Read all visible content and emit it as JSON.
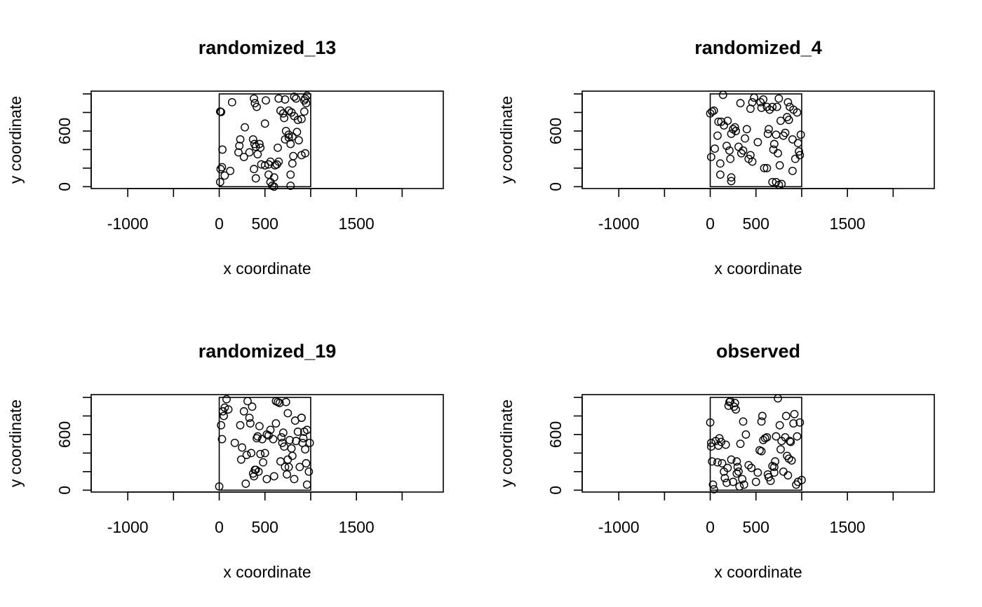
{
  "chart_data": [
    {
      "type": "scatter",
      "title": "randomized_13",
      "xlabel": "x coordinate",
      "ylabel": "y coordinate",
      "xlim": [
        -1400,
        2450
      ],
      "ylim": [
        -20,
        1030
      ],
      "x_ticks": [
        -1000,
        -500,
        0,
        500,
        1000,
        1500,
        2000
      ],
      "x_tick_labels": [
        "-1000",
        "",
        "0",
        "500",
        "",
        "1500",
        ""
      ],
      "y_ticks": [
        0,
        200,
        400,
        600,
        800,
        1000
      ],
      "y_tick_labels": [
        "0",
        "",
        "",
        "600",
        "",
        ""
      ],
      "window": {
        "xmin": 0,
        "xmax": 1000,
        "ymin": 0,
        "ymax": 1000
      },
      "points": [
        [
          10,
          810
        ],
        [
          20,
          805
        ],
        [
          140,
          910
        ],
        [
          35,
          400
        ],
        [
          30,
          210
        ],
        [
          15,
          190
        ],
        [
          10,
          50
        ],
        [
          60,
          120
        ],
        [
          120,
          170
        ],
        [
          230,
          510
        ],
        [
          220,
          440
        ],
        [
          210,
          370
        ],
        [
          270,
          320
        ],
        [
          280,
          640
        ],
        [
          330,
          370
        ],
        [
          370,
          510
        ],
        [
          380,
          950
        ],
        [
          390,
          900
        ],
        [
          410,
          860
        ],
        [
          385,
          460
        ],
        [
          400,
          430
        ],
        [
          420,
          350
        ],
        [
          440,
          460
        ],
        [
          380,
          190
        ],
        [
          400,
          90
        ],
        [
          460,
          240
        ],
        [
          500,
          230
        ],
        [
          540,
          240
        ],
        [
          510,
          930
        ],
        [
          560,
          50
        ],
        [
          580,
          10
        ],
        [
          600,
          100
        ],
        [
          610,
          230
        ],
        [
          630,
          240
        ],
        [
          640,
          420
        ],
        [
          650,
          950
        ],
        [
          670,
          820
        ],
        [
          700,
          790
        ],
        [
          710,
          740
        ],
        [
          720,
          940
        ],
        [
          730,
          600
        ],
        [
          760,
          820
        ],
        [
          790,
          800
        ],
        [
          760,
          560
        ],
        [
          780,
          460
        ],
        [
          800,
          540
        ],
        [
          820,
          970
        ],
        [
          820,
          760
        ],
        [
          840,
          950
        ],
        [
          810,
          330
        ],
        [
          800,
          250
        ],
        [
          780,
          130
        ],
        [
          780,
          10
        ],
        [
          850,
          590
        ],
        [
          860,
          720
        ],
        [
          870,
          500
        ],
        [
          900,
          730
        ],
        [
          900,
          340
        ],
        [
          930,
          930
        ],
        [
          940,
          950
        ],
        [
          950,
          900
        ],
        [
          940,
          360
        ],
        [
          930,
          810
        ],
        [
          960,
          980
        ],
        [
          540,
          130
        ],
        [
          600,
          0
        ],
        [
          450,
          420
        ],
        [
          560,
          270
        ],
        [
          650,
          270
        ],
        [
          760,
          530
        ],
        [
          500,
          680
        ],
        [
          720,
          510
        ]
      ]
    },
    {
      "type": "scatter",
      "title": "randomized_4",
      "xlabel": "x coordinate",
      "ylabel": "y coordinate",
      "xlim": [
        -1400,
        2450
      ],
      "ylim": [
        -20,
        1030
      ],
      "x_ticks": [
        -1000,
        -500,
        0,
        500,
        1000,
        1500,
        2000
      ],
      "x_tick_labels": [
        "-1000",
        "",
        "0",
        "500",
        "",
        "1500",
        ""
      ],
      "y_ticks": [
        0,
        200,
        400,
        600,
        800,
        1000
      ],
      "y_tick_labels": [
        "0",
        "",
        "",
        "600",
        "",
        ""
      ],
      "window": {
        "xmin": 0,
        "xmax": 1000,
        "ymin": 0,
        "ymax": 1000
      },
      "points": [
        [
          0,
          790
        ],
        [
          20,
          810
        ],
        [
          40,
          820
        ],
        [
          10,
          320
        ],
        [
          50,
          410
        ],
        [
          80,
          550
        ],
        [
          90,
          700
        ],
        [
          120,
          700
        ],
        [
          140,
          990
        ],
        [
          110,
          130
        ],
        [
          150,
          660
        ],
        [
          190,
          710
        ],
        [
          180,
          440
        ],
        [
          230,
          570
        ],
        [
          210,
          390
        ],
        [
          220,
          300
        ],
        [
          230,
          100
        ],
        [
          230,
          60
        ],
        [
          250,
          620
        ],
        [
          270,
          640
        ],
        [
          280,
          600
        ],
        [
          310,
          430
        ],
        [
          330,
          900
        ],
        [
          340,
          360
        ],
        [
          360,
          390
        ],
        [
          380,
          520
        ],
        [
          400,
          620
        ],
        [
          420,
          300
        ],
        [
          440,
          340
        ],
        [
          460,
          270
        ],
        [
          460,
          910
        ],
        [
          480,
          960
        ],
        [
          520,
          480
        ],
        [
          550,
          910
        ],
        [
          560,
          850
        ],
        [
          580,
          940
        ],
        [
          590,
          200
        ],
        [
          620,
          200
        ],
        [
          620,
          860
        ],
        [
          630,
          570
        ],
        [
          640,
          620
        ],
        [
          650,
          830
        ],
        [
          680,
          860
        ],
        [
          690,
          400
        ],
        [
          700,
          460
        ],
        [
          720,
          560
        ],
        [
          730,
          860
        ],
        [
          740,
          360
        ],
        [
          750,
          950
        ],
        [
          760,
          230
        ],
        [
          770,
          710
        ],
        [
          800,
          550
        ],
        [
          820,
          580
        ],
        [
          840,
          750
        ],
        [
          860,
          720
        ],
        [
          870,
          860
        ],
        [
          900,
          510
        ],
        [
          900,
          170
        ],
        [
          910,
          830
        ],
        [
          930,
          300
        ],
        [
          950,
          800
        ],
        [
          960,
          470
        ],
        [
          970,
          380
        ],
        [
          980,
          340
        ],
        [
          990,
          560
        ],
        [
          680,
          50
        ],
        [
          720,
          50
        ],
        [
          750,
          20
        ],
        [
          780,
          30
        ],
        [
          850,
          910
        ],
        [
          110,
          250
        ],
        [
          440,
          840
        ]
      ]
    },
    {
      "type": "scatter",
      "title": "randomized_19",
      "xlabel": "x coordinate",
      "ylabel": "y coordinate",
      "xlim": [
        -1400,
        2450
      ],
      "ylim": [
        -20,
        1030
      ],
      "x_ticks": [
        -1000,
        -500,
        0,
        500,
        1000,
        1500,
        2000
      ],
      "x_tick_labels": [
        "-1000",
        "",
        "0",
        "500",
        "",
        "1500",
        ""
      ],
      "y_ticks": [
        0,
        200,
        400,
        600,
        800,
        1000
      ],
      "y_tick_labels": [
        "0",
        "",
        "",
        "600",
        "",
        ""
      ],
      "window": {
        "xmin": 0,
        "xmax": 1000,
        "ymin": 0,
        "ymax": 1000
      },
      "points": [
        [
          0,
          40
        ],
        [
          20,
          700
        ],
        [
          30,
          550
        ],
        [
          40,
          850
        ],
        [
          50,
          800
        ],
        [
          60,
          890
        ],
        [
          80,
          980
        ],
        [
          100,
          870
        ],
        [
          170,
          510
        ],
        [
          230,
          700
        ],
        [
          250,
          460
        ],
        [
          240,
          330
        ],
        [
          270,
          850
        ],
        [
          290,
          70
        ],
        [
          300,
          380
        ],
        [
          310,
          960
        ],
        [
          330,
          780
        ],
        [
          340,
          720
        ],
        [
          350,
          400
        ],
        [
          360,
          900
        ],
        [
          370,
          180
        ],
        [
          380,
          150
        ],
        [
          390,
          220
        ],
        [
          410,
          560
        ],
        [
          420,
          580
        ],
        [
          430,
          200
        ],
        [
          440,
          690
        ],
        [
          470,
          550
        ],
        [
          480,
          300
        ],
        [
          500,
          400
        ],
        [
          520,
          120
        ],
        [
          540,
          590
        ],
        [
          560,
          650
        ],
        [
          590,
          550
        ],
        [
          600,
          150
        ],
        [
          620,
          960
        ],
        [
          640,
          950
        ],
        [
          660,
          940
        ],
        [
          670,
          310
        ],
        [
          690,
          510
        ],
        [
          700,
          620
        ],
        [
          710,
          470
        ],
        [
          720,
          250
        ],
        [
          730,
          950
        ],
        [
          740,
          170
        ],
        [
          750,
          830
        ],
        [
          760,
          250
        ],
        [
          770,
          540
        ],
        [
          790,
          450
        ],
        [
          800,
          370
        ],
        [
          820,
          120
        ],
        [
          830,
          750
        ],
        [
          840,
          530
        ],
        [
          860,
          630
        ],
        [
          880,
          250
        ],
        [
          900,
          780
        ],
        [
          910,
          510
        ],
        [
          920,
          560
        ],
        [
          930,
          630
        ],
        [
          940,
          440
        ],
        [
          950,
          290
        ],
        [
          960,
          650
        ],
        [
          960,
          60
        ],
        [
          980,
          200
        ],
        [
          990,
          510
        ],
        [
          400,
          220
        ],
        [
          450,
          390
        ],
        [
          520,
          600
        ],
        [
          620,
          720
        ],
        [
          680,
          570
        ],
        [
          900,
          780
        ],
        [
          750,
          330
        ]
      ]
    },
    {
      "type": "scatter",
      "title": "observed",
      "xlabel": "x coordinate",
      "ylabel": "y coordinate",
      "xlim": [
        -1400,
        2450
      ],
      "ylim": [
        -20,
        1030
      ],
      "x_ticks": [
        -1000,
        -500,
        0,
        500,
        1000,
        1500,
        2000
      ],
      "x_tick_labels": [
        "-1000",
        "",
        "0",
        "500",
        "",
        "1500",
        ""
      ],
      "y_ticks": [
        0,
        200,
        400,
        600,
        800,
        1000
      ],
      "y_tick_labels": [
        "0",
        "",
        "",
        "600",
        "",
        ""
      ],
      "window": {
        "xmin": 0,
        "xmax": 1000,
        "ymin": 0,
        "ymax": 1000
      },
      "points": [
        [
          0,
          730
        ],
        [
          10,
          470
        ],
        [
          10,
          510
        ],
        [
          20,
          310
        ],
        [
          30,
          60
        ],
        [
          40,
          10
        ],
        [
          60,
          530
        ],
        [
          80,
          300
        ],
        [
          90,
          480
        ],
        [
          100,
          560
        ],
        [
          120,
          520
        ],
        [
          130,
          290
        ],
        [
          150,
          200
        ],
        [
          160,
          130
        ],
        [
          170,
          490
        ],
        [
          180,
          80
        ],
        [
          190,
          240
        ],
        [
          200,
          910
        ],
        [
          210,
          950
        ],
        [
          220,
          960
        ],
        [
          230,
          330
        ],
        [
          250,
          90
        ],
        [
          260,
          900
        ],
        [
          270,
          940
        ],
        [
          280,
          870
        ],
        [
          290,
          180
        ],
        [
          300,
          250
        ],
        [
          310,
          200
        ],
        [
          320,
          40
        ],
        [
          330,
          500
        ],
        [
          350,
          120
        ],
        [
          360,
          740
        ],
        [
          370,
          60
        ],
        [
          390,
          600
        ],
        [
          420,
          270
        ],
        [
          450,
          240
        ],
        [
          500,
          90
        ],
        [
          520,
          190
        ],
        [
          540,
          430
        ],
        [
          560,
          740
        ],
        [
          570,
          800
        ],
        [
          580,
          540
        ],
        [
          600,
          560
        ],
        [
          620,
          570
        ],
        [
          630,
          170
        ],
        [
          640,
          140
        ],
        [
          660,
          100
        ],
        [
          680,
          260
        ],
        [
          700,
          250
        ],
        [
          700,
          190
        ],
        [
          710,
          310
        ],
        [
          720,
          580
        ],
        [
          740,
          990
        ],
        [
          760,
          700
        ],
        [
          770,
          440
        ],
        [
          780,
          530
        ],
        [
          800,
          200
        ],
        [
          820,
          570
        ],
        [
          830,
          800
        ],
        [
          840,
          370
        ],
        [
          850,
          160
        ],
        [
          860,
          340
        ],
        [
          870,
          530
        ],
        [
          880,
          520
        ],
        [
          890,
          320
        ],
        [
          910,
          720
        ],
        [
          920,
          820
        ],
        [
          940,
          60
        ],
        [
          950,
          580
        ],
        [
          960,
          90
        ],
        [
          980,
          730
        ],
        [
          1000,
          110
        ],
        [
          560,
          420
        ],
        [
          290,
          310
        ]
      ]
    }
  ]
}
